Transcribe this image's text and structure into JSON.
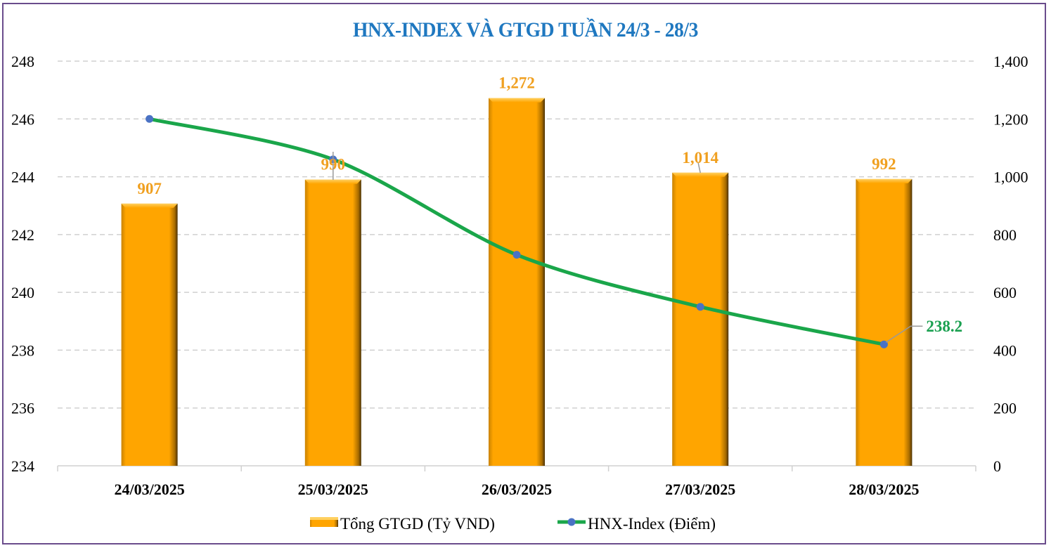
{
  "chart_data": {
    "type": "bar+line",
    "title": "HNX-INDEX VÀ GTGD TUẦN 24/3 -  28/3",
    "categories": [
      "24/03/2025",
      "25/03/2025",
      "26/03/2025",
      "27/03/2025",
      "28/03/2025"
    ],
    "series": [
      {
        "name": "Tổng GTGD (Tỷ VND)",
        "type": "bar",
        "axis": "right",
        "values": [
          907,
          990,
          1272,
          1014,
          992
        ],
        "labels": [
          "907",
          "990",
          "1,272",
          "1,014",
          "992"
        ],
        "color": "#ffa500"
      },
      {
        "name": "HNX-Index (Điểm)",
        "type": "line",
        "axis": "left",
        "values": [
          246.0,
          244.6,
          241.3,
          239.5,
          238.2
        ],
        "last_label": "238.2",
        "line_color": "#1aa64a",
        "marker_color": "#4a72c4"
      }
    ],
    "left_axis": {
      "ylim": [
        234,
        248
      ],
      "ticks": [
        "234",
        "236",
        "238",
        "240",
        "242",
        "244",
        "246",
        "248"
      ]
    },
    "right_axis": {
      "ylim": [
        0,
        1400
      ],
      "ticks": [
        "0",
        "200",
        "400",
        "600",
        "800",
        "1,000",
        "1,200",
        "1,400"
      ]
    },
    "grid": true,
    "legend": "bottom"
  },
  "colors": {
    "title": "#1f78c0",
    "frame": "#6a4c8c",
    "bar_label": "#f0a020",
    "line_label": "#1aa050"
  }
}
